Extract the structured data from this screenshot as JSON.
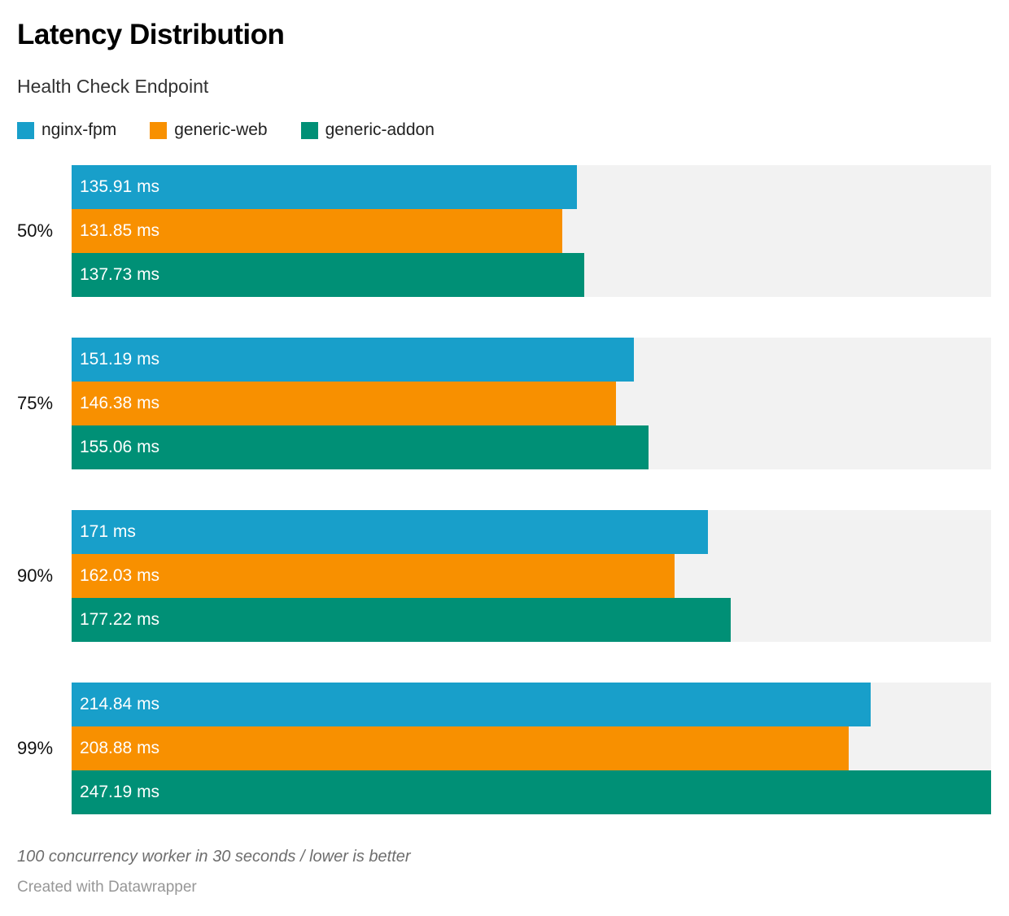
{
  "header": {
    "title": "Latency Distribution",
    "subtitle": "Health Check Endpoint"
  },
  "legend": [
    {
      "label": "nginx-fpm",
      "color": "#189fca"
    },
    {
      "label": "generic-web",
      "color": "#f89000"
    },
    {
      "label": "generic-addon",
      "color": "#009076"
    }
  ],
  "chart_data": {
    "type": "bar",
    "orientation": "horizontal",
    "title": "Latency Distribution",
    "subtitle": "Health Check Endpoint",
    "categories": [
      "50%",
      "75%",
      "90%",
      "99%"
    ],
    "series": [
      {
        "name": "nginx-fpm",
        "color": "#189fca",
        "values": [
          135.91,
          151.19,
          171,
          214.84
        ],
        "labels": [
          "135.91 ms",
          "151.19 ms",
          "171 ms",
          "214.84 ms"
        ]
      },
      {
        "name": "generic-web",
        "color": "#f89000",
        "values": [
          131.85,
          146.38,
          162.03,
          208.88
        ],
        "labels": [
          "131.85 ms",
          "146.38 ms",
          "162.03 ms",
          "208.88 ms"
        ]
      },
      {
        "name": "generic-addon",
        "color": "#009076",
        "values": [
          137.73,
          155.06,
          177.22,
          247.19
        ],
        "labels": [
          "137.73 ms",
          "155.06 ms",
          "177.22 ms",
          "247.19 ms"
        ]
      }
    ],
    "unit": "ms",
    "xlim": [
      0,
      247.19
    ],
    "grid": false,
    "legend_position": "top",
    "track_color": "#f2f2f2",
    "value_label_position": "inside-left"
  },
  "footer": {
    "note": "100 concurrency worker in 30 seconds / lower is better",
    "credit": "Created with Datawrapper"
  }
}
